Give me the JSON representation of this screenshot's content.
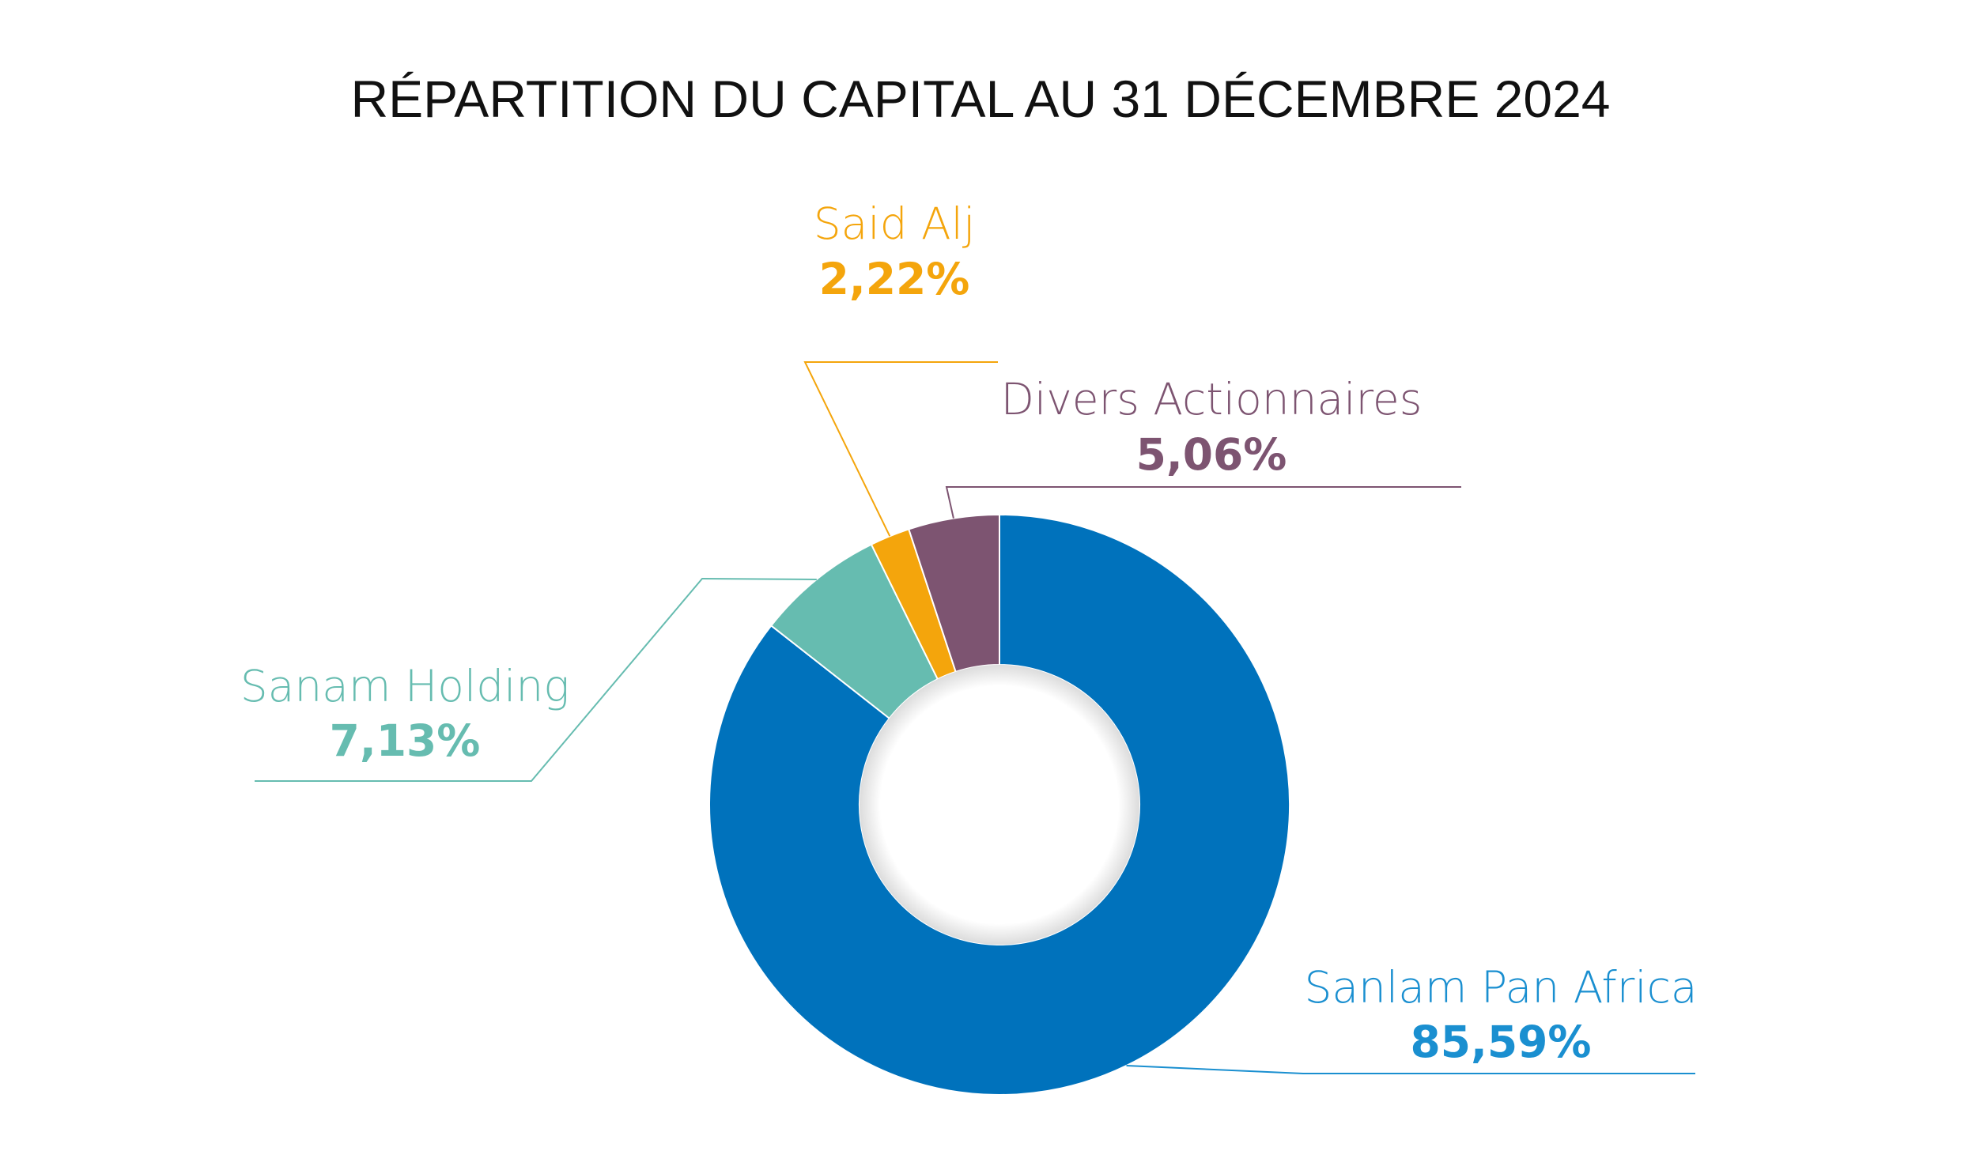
{
  "chart_data": {
    "type": "pie",
    "title": "RÉPARTITION DU CAPITAL AU 31 DÉCEMBRE 2024",
    "slices": [
      {
        "label": "Sanlam Pan Africa",
        "value": 85.59,
        "display": "85,59%",
        "color": "#0072BC",
        "label_color": "#1A8FD0"
      },
      {
        "label": "Sanam Holding",
        "value": 7.13,
        "display": "7,13%",
        "color": "#66BCB0",
        "label_color": "#66BCB0"
      },
      {
        "label": "Said Alj",
        "value": 2.22,
        "display": "2,22%",
        "color": "#F4A50C",
        "label_color": "#F4A50C"
      },
      {
        "label": "Divers Actionnaires",
        "value": 5.06,
        "display": "5,06%",
        "color": "#7D5471",
        "label_color": "#7D5471"
      }
    ]
  }
}
